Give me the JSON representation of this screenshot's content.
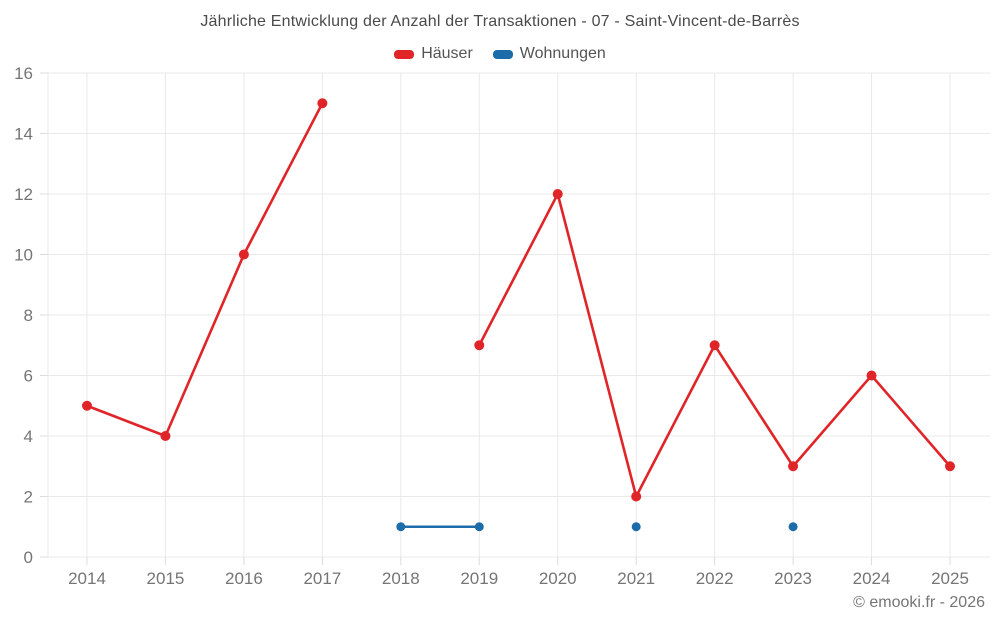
{
  "footer": {
    "credit": "© emooki.fr - 2026"
  },
  "chart_data": {
    "type": "line",
    "title": "Jährliche Entwicklung der Anzahl der Transaktionen - 07 - Saint-Vincent-de-Barrès",
    "categories": [
      "2014",
      "2015",
      "2016",
      "2017",
      "2018",
      "2019",
      "2020",
      "2021",
      "2022",
      "2023",
      "2024",
      "2025"
    ],
    "series": [
      {
        "name": "Häuser",
        "color": "#e02529",
        "values": [
          5,
          4,
          10,
          15,
          null,
          7,
          12,
          2,
          7,
          3,
          6,
          3
        ]
      },
      {
        "name": "Wohnungen",
        "color": "#1b6ca8",
        "values": [
          null,
          null,
          null,
          null,
          1,
          1,
          null,
          1,
          null,
          1,
          null,
          null
        ]
      }
    ],
    "ylim": [
      0,
      16
    ],
    "ytick_step": 2,
    "grid": true,
    "legend_position": "top",
    "axis_text_color": "#757575",
    "grid_color": "#e9e9e9",
    "tick_color": "#dcdcdc"
  }
}
